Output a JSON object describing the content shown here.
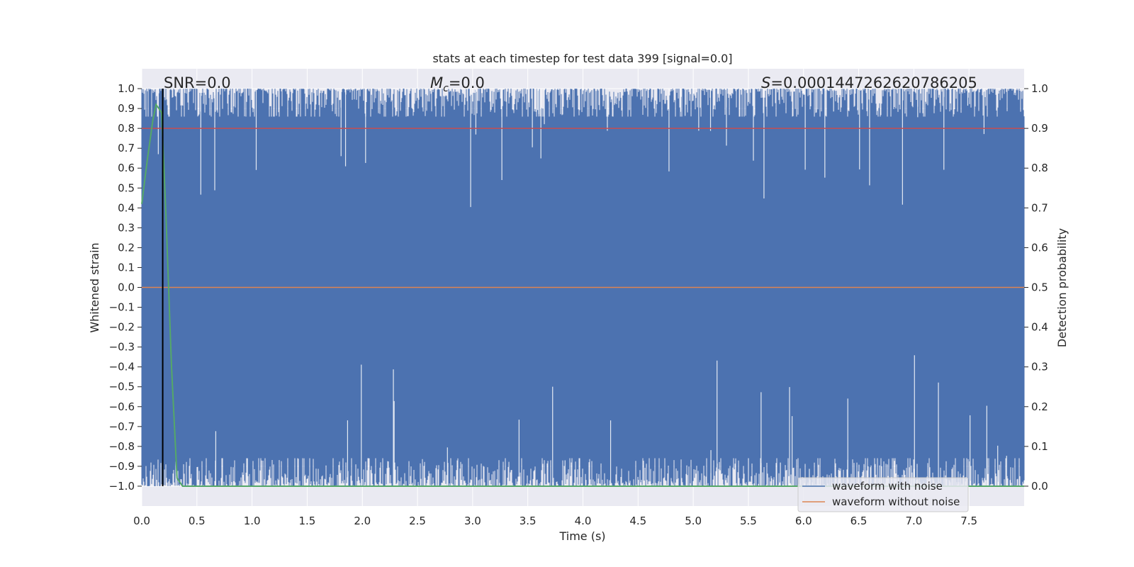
{
  "chart_data": {
    "type": "line",
    "title": "stats at each timestep for test data 399 [signal=0.0]",
    "xlabel": "Time (s)",
    "ylabel_left": "Whitened strain",
    "ylabel_right": "Detection probability",
    "xlim": [
      0.0,
      8.0
    ],
    "ylim_left": [
      -1.1,
      1.1
    ],
    "ylim_right": [
      -0.05,
      1.05
    ],
    "x_ticks": [
      "0.0",
      "0.5",
      "1.0",
      "1.5",
      "2.0",
      "2.5",
      "3.0",
      "3.5",
      "4.0",
      "4.5",
      "5.0",
      "5.5",
      "6.0",
      "6.5",
      "7.0",
      "7.5"
    ],
    "y_ticks_left": [
      "1.0",
      "0.9",
      "0.8",
      "0.7",
      "0.6",
      "0.5",
      "0.4",
      "0.3",
      "0.2",
      "0.1",
      "0.0",
      "−0.1",
      "−0.2",
      "−0.3",
      "−0.4",
      "−0.5",
      "−0.6",
      "−0.7",
      "−0.8",
      "−0.9",
      "−1.0"
    ],
    "y_ticks_right": [
      "1.0",
      "0.9",
      "0.8",
      "0.7",
      "0.6",
      "0.5",
      "0.4",
      "0.3",
      "0.2",
      "0.1",
      "0.0"
    ],
    "grid": true,
    "legend_position": "lower right",
    "annotations": {
      "snr": "SNR=0.0",
      "mc_symbol": "M",
      "mc_sub": "c",
      "mc_value": "=0.0",
      "s_symbol": "S",
      "s_value": "=0.0001447262620786205"
    },
    "series": [
      {
        "name": "waveform with noise",
        "color": "#4c72b0",
        "axis": "left",
        "description_range": [
          -1.0,
          1.0
        ]
      },
      {
        "name": "waveform without noise",
        "color": "#dd8452",
        "axis": "left",
        "values_constant": 0.0
      },
      {
        "name": "",
        "color": "#55a868",
        "axis": "right",
        "x": [
          0.0,
          0.05,
          0.1,
          0.13,
          0.18,
          0.22,
          0.27,
          0.32,
          0.37,
          1.0,
          2.0,
          3.0,
          4.0,
          5.0,
          6.0,
          7.0,
          8.0
        ],
        "y": [
          0.71,
          0.82,
          0.92,
          0.96,
          0.94,
          0.68,
          0.3,
          0.02,
          0.0,
          0.0,
          0.0,
          0.0,
          0.0,
          0.0,
          0.0,
          0.0,
          0.0
        ]
      },
      {
        "name": "",
        "color": "#c44e52",
        "axis": "right",
        "values_constant": 0.9
      },
      {
        "name": "",
        "color": "#000000",
        "axis": "vline",
        "x_value": 0.19
      }
    ],
    "colors": {
      "plot_bg": "#eaeaf2",
      "grid": "#ffffff",
      "noise": "#4c72b0",
      "clean": "#dd8452",
      "prob": "#55a868",
      "threshold": "#c44e52",
      "marker": "#000000"
    }
  }
}
